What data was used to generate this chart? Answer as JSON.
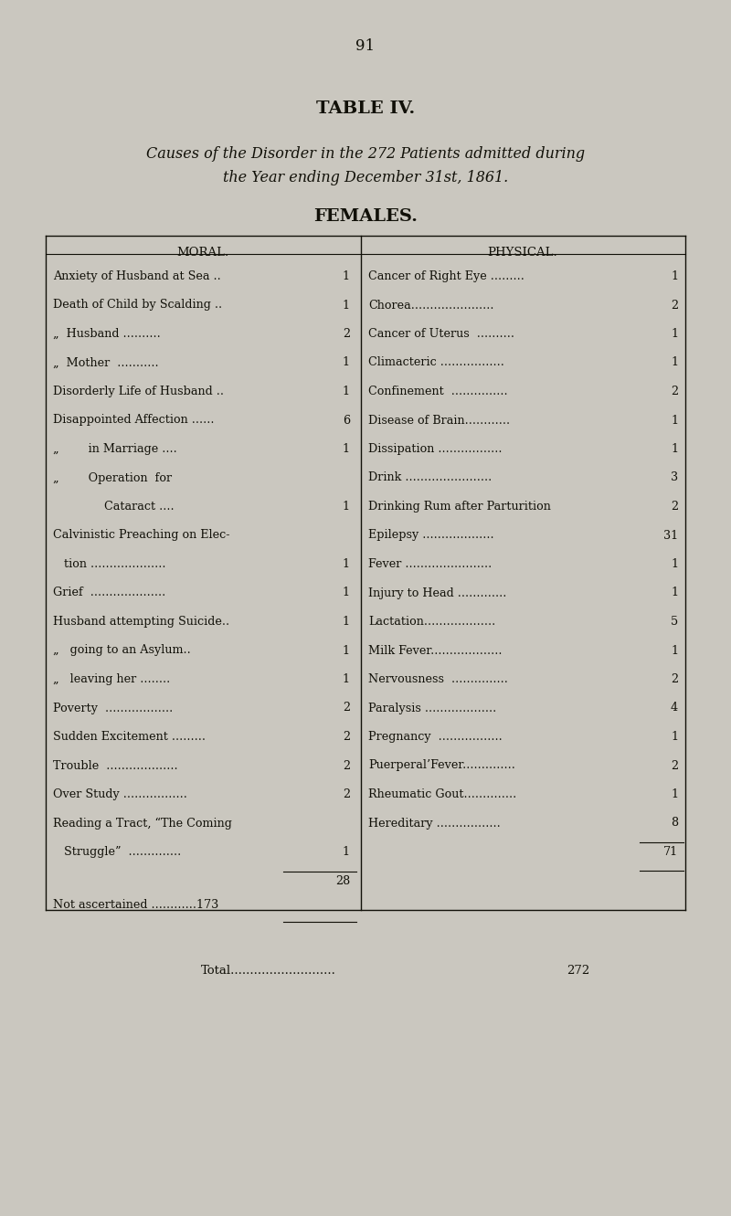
{
  "page_number": "91",
  "table_title": "TABLE IV.",
  "subtitle_line1": "Causes of the Disorder in the 272 Patients admitted during",
  "subtitle_line2": "the Year ending December 31st, 1861.",
  "section_title": "FEMALES.",
  "col1_header": "MORAL.",
  "col2_header": "PHYSICAL.",
  "moral_rows": [
    [
      "Anxiety of Husband at Sea ..",
      "1"
    ],
    [
      "Death of Child by Scalding ..",
      "1"
    ],
    [
      "„  Husband ..........",
      "2"
    ],
    [
      "„  Mother  ...........",
      "1"
    ],
    [
      "Disorderly Life of Husband ..",
      "1"
    ],
    [
      "Disappointed Affection ......",
      "6"
    ],
    [
      "„        in Marriage ....",
      "1"
    ],
    [
      "„        Operation  for",
      ""
    ],
    [
      "              Cataract ....",
      "1"
    ],
    [
      "Calvinistic Preaching on Elec-",
      ""
    ],
    [
      "   tion ....................",
      "1"
    ],
    [
      "Grief  ....................",
      "1"
    ],
    [
      "Husband attempting Suicide..",
      "1"
    ],
    [
      "„   going to an Asylum..",
      "1"
    ],
    [
      "„   leaving her ........",
      "1"
    ],
    [
      "Poverty  ..................",
      "2"
    ],
    [
      "Sudden Excitement .........",
      "2"
    ],
    [
      "Trouble  ...................",
      "2"
    ],
    [
      "Over Study .................",
      "2"
    ],
    [
      "Reading a Tract, “The Coming",
      ""
    ],
    [
      "   Struggle”  ..............",
      "1"
    ]
  ],
  "moral_total": "28",
  "moral_not_ascertained_label": "Not ascertained ............173",
  "physical_rows": [
    [
      "Cancer of Right Eye .........",
      "1"
    ],
    [
      "Chorea......................",
      "2"
    ],
    [
      "Cancer of Uterus  ..........",
      "1"
    ],
    [
      "Climacteric .................",
      "1"
    ],
    [
      "Confinement  ...............",
      "2"
    ],
    [
      "Disease of Brain............",
      "1"
    ],
    [
      "Dissipation .................",
      "1"
    ],
    [
      "Drink .......................",
      "3"
    ],
    [
      "Drinking Rum after Parturition",
      "2"
    ],
    [
      "Epilepsy ...................",
      "31"
    ],
    [
      "Fever .......................",
      "1"
    ],
    [
      "Injury to Head .............",
      "1"
    ],
    [
      "Lactation...................",
      "5"
    ],
    [
      "Milk Fever...................",
      "1"
    ],
    [
      "Nervousness  ...............",
      "2"
    ],
    [
      "Paralysis ...................",
      "4"
    ],
    [
      "Pregnancy  .................",
      "1"
    ],
    [
      "Puerperal’Fever..............",
      "2"
    ],
    [
      "Rheumatic Gout..............",
      "1"
    ],
    [
      "Hereditary .................",
      "8"
    ]
  ],
  "physical_total": "71",
  "total_line": "Total...........................",
  "total_value": "272",
  "bg_color": "#cac7bf",
  "text_color": "#111008",
  "font_family": "serif",
  "table_box_color": "#111008"
}
